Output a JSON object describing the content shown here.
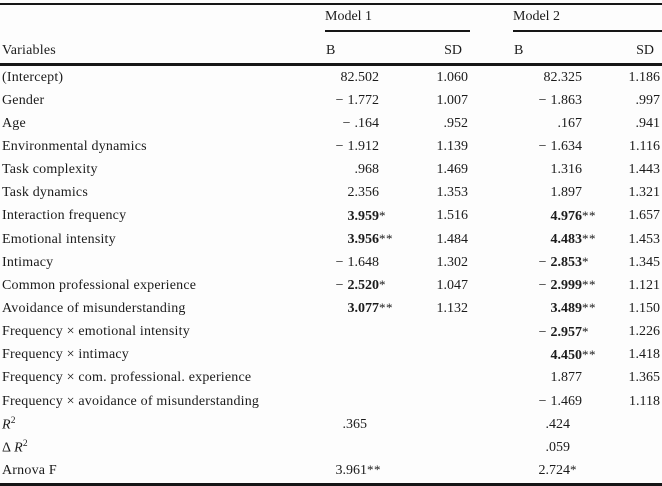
{
  "table": {
    "header": {
      "variables_label": "Variables",
      "model1": {
        "title": "Model 1",
        "col_b": "B",
        "col_sd": "SD"
      },
      "model2": {
        "title": "Model 2",
        "col_b": "B",
        "col_sd": "SD"
      }
    },
    "rows": [
      {
        "label": "(Intercept)",
        "m1": {
          "sign": "",
          "b": "82.502",
          "stars": "",
          "sd": "1.060",
          "bold": false
        },
        "m2": {
          "sign": "",
          "b": "82.325",
          "stars": "",
          "sd": "1.186",
          "bold": false
        }
      },
      {
        "label": "Gender",
        "m1": {
          "sign": "−",
          "b": "1.772",
          "stars": "",
          "sd": "1.007",
          "bold": false
        },
        "m2": {
          "sign": "−",
          "b": "1.863",
          "stars": "",
          "sd": ".997",
          "bold": false
        }
      },
      {
        "label": "Age",
        "m1": {
          "sign": "−",
          "b": ".164",
          "stars": "",
          "sd": ".952",
          "bold": false
        },
        "m2": {
          "sign": "",
          "b": ".167",
          "stars": "",
          "sd": ".941",
          "bold": false
        }
      },
      {
        "label": "Environmental dynamics",
        "m1": {
          "sign": "−",
          "b": "1.912",
          "stars": "",
          "sd": "1.139",
          "bold": false
        },
        "m2": {
          "sign": "−",
          "b": "1.634",
          "stars": "",
          "sd": "1.116",
          "bold": false
        }
      },
      {
        "label": "Task complexity",
        "m1": {
          "sign": "",
          "b": ".968",
          "stars": "",
          "sd": "1.469",
          "bold": false
        },
        "m2": {
          "sign": "",
          "b": "1.316",
          "stars": "",
          "sd": "1.443",
          "bold": false
        }
      },
      {
        "label": "Task dynamics",
        "m1": {
          "sign": "",
          "b": "2.356",
          "stars": "",
          "sd": "1.353",
          "bold": false
        },
        "m2": {
          "sign": "",
          "b": "1.897",
          "stars": "",
          "sd": "1.321",
          "bold": false
        }
      },
      {
        "label": "Interaction frequency",
        "m1": {
          "sign": "",
          "b": "3.959",
          "stars": "*",
          "sd": "1.516",
          "bold": true
        },
        "m2": {
          "sign": "",
          "b": "4.976",
          "stars": "**",
          "sd": "1.657",
          "bold": true
        }
      },
      {
        "label": "Emotional intensity",
        "m1": {
          "sign": "",
          "b": "3.956",
          "stars": "**",
          "sd": "1.484",
          "bold": true
        },
        "m2": {
          "sign": "",
          "b": "4.483",
          "stars": "**",
          "sd": "1.453",
          "bold": true
        }
      },
      {
        "label": "Intimacy",
        "m1": {
          "sign": "−",
          "b": "1.648",
          "stars": "",
          "sd": "1.302",
          "bold": false
        },
        "m2": {
          "sign": "−",
          "b": "2.853",
          "stars": "*",
          "sd": "1.345",
          "bold": true
        }
      },
      {
        "label": "Common professional experience",
        "m1": {
          "sign": "−",
          "b": "2.520",
          "stars": "*",
          "sd": "1.047",
          "bold": true
        },
        "m2": {
          "sign": "−",
          "b": "2.999",
          "stars": "**",
          "sd": "1.121",
          "bold": true
        }
      },
      {
        "label": "Avoidance of misunderstanding",
        "m1": {
          "sign": "",
          "b": "3.077",
          "stars": "**",
          "sd": "1.132",
          "bold": true
        },
        "m2": {
          "sign": "",
          "b": "3.489",
          "stars": "**",
          "sd": "1.150",
          "bold": true
        }
      },
      {
        "label": "Frequency × emotional intensity",
        "m1": {
          "sign": "",
          "b": "",
          "stars": "",
          "sd": "",
          "bold": false
        },
        "m2": {
          "sign": "−",
          "b": "2.957",
          "stars": "*",
          "sd": "1.226",
          "bold": true
        }
      },
      {
        "label": "Frequency × intimacy",
        "m1": {
          "sign": "",
          "b": "",
          "stars": "",
          "sd": "",
          "bold": false
        },
        "m2": {
          "sign": "",
          "b": "4.450",
          "stars": "**",
          "sd": "1.418",
          "bold": true
        }
      },
      {
        "label": "Frequency × com. professional. experience",
        "m1": {
          "sign": "",
          "b": "",
          "stars": "",
          "sd": "",
          "bold": false
        },
        "m2": {
          "sign": "",
          "b": "1.877",
          "stars": "",
          "sd": "1.365",
          "bold": false
        }
      },
      {
        "label": "Frequency × avoidance of misunderstanding",
        "m1": {
          "sign": "",
          "b": "",
          "stars": "",
          "sd": "",
          "bold": false
        },
        "m2": {
          "sign": "−",
          "b": "1.469",
          "stars": "",
          "sd": "1.118",
          "bold": false
        }
      },
      {
        "label": "",
        "label_italic": "R",
        "label_sup": "2",
        "summary": true,
        "m1": {
          "sign": "",
          "b": ".365",
          "stars": "",
          "sd": "",
          "bold": false
        },
        "m2": {
          "sign": "",
          "b": ".424",
          "stars": "",
          "sd": "",
          "bold": false
        }
      },
      {
        "label": "Δ ",
        "label_italic": "R",
        "label_sup": "2",
        "summary": true,
        "m1": {
          "sign": "",
          "b": "",
          "stars": "",
          "sd": "",
          "bold": false
        },
        "m2": {
          "sign": "",
          "b": ".059",
          "stars": "",
          "sd": "",
          "bold": false
        }
      },
      {
        "label": "Arnova F",
        "summary": true,
        "m1": {
          "sign": "",
          "b": "3.961",
          "stars": "**",
          "sd": "",
          "bold": false
        },
        "m2": {
          "sign": "",
          "b": "2.724",
          "stars": "*",
          "sd": "",
          "bold": false
        }
      }
    ]
  }
}
